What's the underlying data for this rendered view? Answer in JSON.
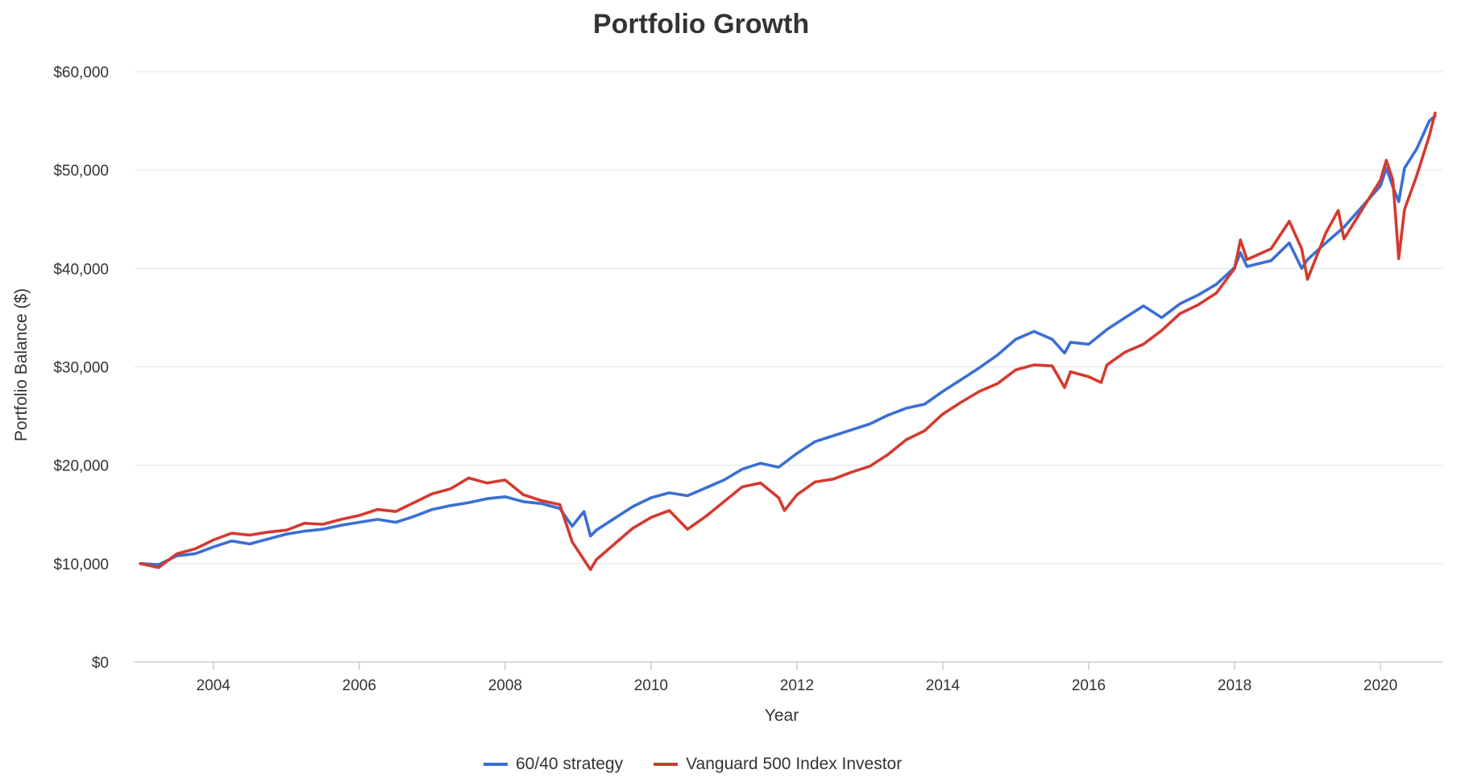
{
  "chart_data": {
    "type": "line",
    "title": "Portfolio Growth",
    "xlabel": "Year",
    "ylabel": "Portfolio Balance ($)",
    "xlim": [
      2002.92,
      2020.85
    ],
    "ylim": [
      0,
      60000
    ],
    "x_ticks": [
      2004,
      2006,
      2008,
      2010,
      2012,
      2014,
      2016,
      2018,
      2020
    ],
    "x_tick_labels": [
      "2004",
      "2006",
      "2008",
      "2010",
      "2012",
      "2014",
      "2016",
      "2018",
      "2020"
    ],
    "y_ticks": [
      0,
      10000,
      20000,
      30000,
      40000,
      50000,
      60000
    ],
    "y_tick_labels": [
      "$0",
      "$10,000",
      "$20,000",
      "$30,000",
      "$40,000",
      "$50,000",
      "$60,000"
    ],
    "grid": true,
    "legend_position": "bottom",
    "series": [
      {
        "name": "60/40 strategy",
        "color": "#3a6fd4",
        "points": [
          [
            2003.0,
            10000
          ],
          [
            2003.25,
            9900
          ],
          [
            2003.5,
            10800
          ],
          [
            2003.75,
            11000
          ],
          [
            2004.0,
            11700
          ],
          [
            2004.25,
            12300
          ],
          [
            2004.5,
            12000
          ],
          [
            2004.75,
            12500
          ],
          [
            2005.0,
            13000
          ],
          [
            2005.25,
            13300
          ],
          [
            2005.5,
            13500
          ],
          [
            2005.75,
            13900
          ],
          [
            2006.0,
            14200
          ],
          [
            2006.25,
            14500
          ],
          [
            2006.5,
            14200
          ],
          [
            2006.75,
            14800
          ],
          [
            2007.0,
            15500
          ],
          [
            2007.25,
            15900
          ],
          [
            2007.5,
            16200
          ],
          [
            2007.75,
            16600
          ],
          [
            2008.0,
            16800
          ],
          [
            2008.25,
            16300
          ],
          [
            2008.5,
            16100
          ],
          [
            2008.75,
            15600
          ],
          [
            2008.92,
            13800
          ],
          [
            2009.08,
            15300
          ],
          [
            2009.17,
            12800
          ],
          [
            2009.25,
            13400
          ],
          [
            2009.5,
            14600
          ],
          [
            2009.75,
            15800
          ],
          [
            2010.0,
            16700
          ],
          [
            2010.25,
            17200
          ],
          [
            2010.5,
            16900
          ],
          [
            2010.75,
            17700
          ],
          [
            2011.0,
            18500
          ],
          [
            2011.25,
            19600
          ],
          [
            2011.5,
            20200
          ],
          [
            2011.75,
            19800
          ],
          [
            2012.0,
            21200
          ],
          [
            2012.25,
            22400
          ],
          [
            2012.5,
            23000
          ],
          [
            2012.75,
            23600
          ],
          [
            2013.0,
            24200
          ],
          [
            2013.25,
            25100
          ],
          [
            2013.5,
            25800
          ],
          [
            2013.75,
            26200
          ],
          [
            2014.0,
            27500
          ],
          [
            2014.25,
            28700
          ],
          [
            2014.5,
            29900
          ],
          [
            2014.75,
            31200
          ],
          [
            2015.0,
            32800
          ],
          [
            2015.25,
            33600
          ],
          [
            2015.5,
            32800
          ],
          [
            2015.67,
            31400
          ],
          [
            2015.75,
            32500
          ],
          [
            2016.0,
            32300
          ],
          [
            2016.25,
            33800
          ],
          [
            2016.5,
            35000
          ],
          [
            2016.75,
            36200
          ],
          [
            2017.0,
            35000
          ],
          [
            2017.25,
            36400
          ],
          [
            2017.5,
            37300
          ],
          [
            2017.75,
            38400
          ],
          [
            2018.0,
            40100
          ],
          [
            2018.08,
            41600
          ],
          [
            2018.17,
            40200
          ],
          [
            2018.5,
            40800
          ],
          [
            2018.75,
            42600
          ],
          [
            2018.92,
            40000
          ],
          [
            2019.0,
            40900
          ],
          [
            2019.25,
            42600
          ],
          [
            2019.5,
            44200
          ],
          [
            2019.75,
            46300
          ],
          [
            2020.0,
            48400
          ],
          [
            2020.08,
            50200
          ],
          [
            2020.17,
            48300
          ],
          [
            2020.25,
            46800
          ],
          [
            2020.33,
            50200
          ],
          [
            2020.5,
            52200
          ],
          [
            2020.67,
            55000
          ],
          [
            2020.75,
            55500
          ]
        ]
      },
      {
        "name": "Vanguard 500 Index Investor",
        "color": "#d43a2f",
        "points": [
          [
            2003.0,
            10000
          ],
          [
            2003.25,
            9600
          ],
          [
            2003.5,
            11000
          ],
          [
            2003.75,
            11500
          ],
          [
            2004.0,
            12400
          ],
          [
            2004.25,
            13100
          ],
          [
            2004.5,
            12900
          ],
          [
            2004.75,
            13200
          ],
          [
            2005.0,
            13400
          ],
          [
            2005.25,
            14100
          ],
          [
            2005.5,
            14000
          ],
          [
            2005.75,
            14500
          ],
          [
            2006.0,
            14900
          ],
          [
            2006.25,
            15500
          ],
          [
            2006.5,
            15300
          ],
          [
            2006.75,
            16200
          ],
          [
            2007.0,
            17100
          ],
          [
            2007.25,
            17600
          ],
          [
            2007.5,
            18700
          ],
          [
            2007.75,
            18200
          ],
          [
            2008.0,
            18500
          ],
          [
            2008.25,
            17000
          ],
          [
            2008.5,
            16400
          ],
          [
            2008.75,
            16000
          ],
          [
            2008.92,
            12200
          ],
          [
            2009.0,
            11300
          ],
          [
            2009.17,
            9400
          ],
          [
            2009.25,
            10400
          ],
          [
            2009.5,
            12000
          ],
          [
            2009.75,
            13600
          ],
          [
            2010.0,
            14700
          ],
          [
            2010.25,
            15400
          ],
          [
            2010.5,
            13500
          ],
          [
            2010.75,
            14800
          ],
          [
            2011.0,
            16300
          ],
          [
            2011.25,
            17800
          ],
          [
            2011.5,
            18200
          ],
          [
            2011.75,
            16700
          ],
          [
            2011.83,
            15400
          ],
          [
            2012.0,
            17000
          ],
          [
            2012.25,
            18300
          ],
          [
            2012.5,
            18600
          ],
          [
            2012.75,
            19300
          ],
          [
            2013.0,
            19900
          ],
          [
            2013.25,
            21100
          ],
          [
            2013.5,
            22600
          ],
          [
            2013.75,
            23500
          ],
          [
            2014.0,
            25200
          ],
          [
            2014.25,
            26400
          ],
          [
            2014.5,
            27500
          ],
          [
            2014.75,
            28300
          ],
          [
            2015.0,
            29700
          ],
          [
            2015.25,
            30200
          ],
          [
            2015.5,
            30100
          ],
          [
            2015.67,
            27900
          ],
          [
            2015.75,
            29500
          ],
          [
            2016.0,
            29000
          ],
          [
            2016.17,
            28400
          ],
          [
            2016.25,
            30200
          ],
          [
            2016.5,
            31500
          ],
          [
            2016.75,
            32300
          ],
          [
            2017.0,
            33700
          ],
          [
            2017.25,
            35400
          ],
          [
            2017.5,
            36300
          ],
          [
            2017.75,
            37500
          ],
          [
            2018.0,
            40000
          ],
          [
            2018.08,
            42900
          ],
          [
            2018.17,
            40900
          ],
          [
            2018.5,
            42000
          ],
          [
            2018.75,
            44800
          ],
          [
            2018.92,
            42000
          ],
          [
            2019.0,
            38900
          ],
          [
            2019.25,
            43600
          ],
          [
            2019.42,
            45900
          ],
          [
            2019.5,
            43000
          ],
          [
            2019.75,
            46000
          ],
          [
            2020.0,
            49000
          ],
          [
            2020.08,
            51000
          ],
          [
            2020.17,
            49000
          ],
          [
            2020.25,
            41000
          ],
          [
            2020.33,
            46000
          ],
          [
            2020.5,
            49500
          ],
          [
            2020.67,
            53500
          ],
          [
            2020.75,
            55800
          ]
        ]
      }
    ]
  }
}
